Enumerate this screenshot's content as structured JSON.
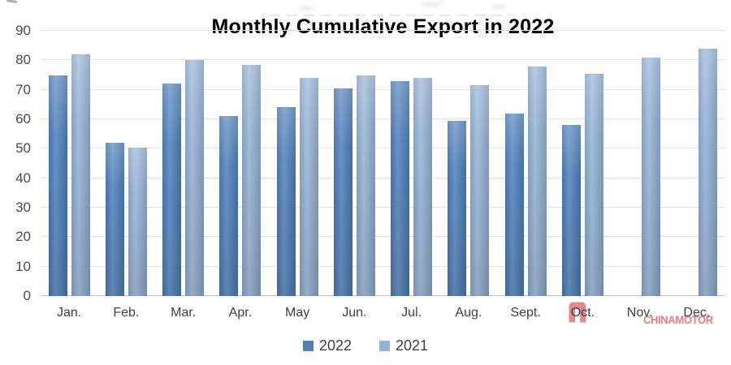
{
  "chart_data": {
    "type": "bar",
    "title": "Monthly Cumulative Export in 2022",
    "categories": [
      "Jan.",
      "Feb.",
      "Mar.",
      "Apr.",
      "May",
      "Jun.",
      "Jul.",
      "Aug.",
      "Sept.",
      "Oct.",
      "Nov.",
      "Dec."
    ],
    "series": [
      {
        "name": "2022",
        "color": "#4f81bd",
        "values": [
          75,
          52,
          72,
          61,
          64,
          70.5,
          73,
          59.5,
          62,
          58,
          null,
          null
        ]
      },
      {
        "name": "2021",
        "color": "#95b3d7",
        "values": [
          82,
          50.5,
          80,
          78.5,
          74,
          75,
          74,
          71.5,
          78,
          75.5,
          81,
          84
        ]
      }
    ],
    "xlabel": "",
    "ylabel": "",
    "ylim": [
      0,
      90
    ],
    "yticks": [
      0,
      10,
      20,
      30,
      40,
      50,
      60,
      70,
      80,
      90
    ],
    "grid": true,
    "legend_position": "bottom"
  },
  "watermark": {
    "text": "CHINAMOTOR",
    "color": "#e0696b"
  }
}
